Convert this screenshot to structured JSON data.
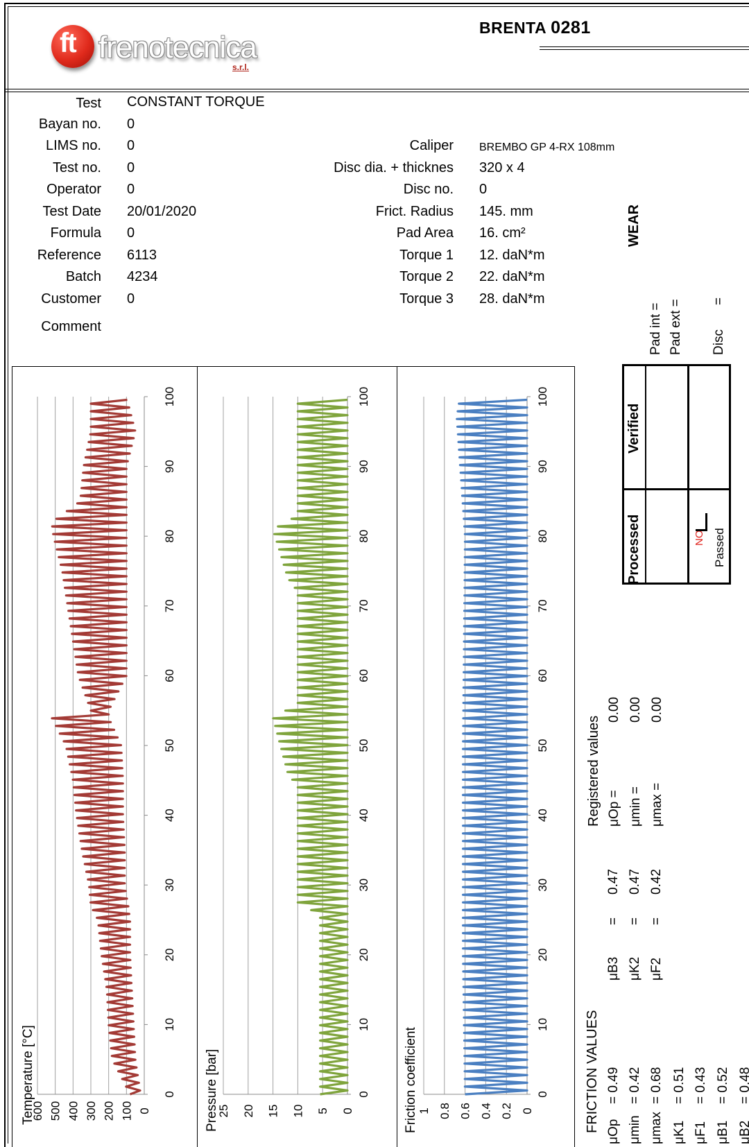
{
  "header": {
    "brand": "frenotecnica",
    "brand_suffix": "s.r.l.",
    "logo_mark": "ft",
    "machine": "BRENTA",
    "machine_number": "0281"
  },
  "test_info": {
    "test_label": "Test",
    "test_value": "CONSTANT TORQUE",
    "bayan_label": "Bayan no.",
    "bayan_value": "0",
    "lims_label": "LIMS no.",
    "lims_value": "0",
    "testno_label": "Test no.",
    "testno_value": "0",
    "operator_label": "Operator",
    "operator_value": "0",
    "date_label": "Test Date",
    "date_value": "20/01/2020",
    "formula_label": "Formula",
    "formula_value": "0",
    "reference_label": "Reference",
    "reference_value": "6113",
    "batch_label": "Batch",
    "batch_value": "4234",
    "customer_label": "Customer",
    "customer_value": "0",
    "comment_label": "Comment"
  },
  "setup": {
    "caliper_label": "Caliper",
    "caliper_value": "BREMBO GP 4-RX 108mm",
    "disc_dia_label": "Disc dia. + thicknes",
    "disc_dia_value": "320 x 4",
    "disc_no_label": "Disc no.",
    "disc_no_value": "0",
    "radius_label": "Frict. Radius",
    "radius_value": "145. mm",
    "pad_area_label": "Pad Area",
    "pad_area_value": "16. cm²",
    "torque1_label": "Torque 1",
    "torque1_value": "12. daN*m",
    "torque2_label": "Torque 2",
    "torque2_value": "22. daN*m",
    "torque3_label": "Torque 3",
    "torque3_value": "28. daN*m"
  },
  "wear": {
    "title": "WEAR",
    "pad_int": "Pad int =",
    "pad_ext": "Pad ext =",
    "disc": "Disc",
    "disc_eq": "="
  },
  "approval": {
    "verified": "Verified",
    "processed": "Processed",
    "no": "NO",
    "passed": "Passed"
  },
  "registered": {
    "title": "Registered values",
    "rows": [
      {
        "label": "μOp  =",
        "value": "0.00"
      },
      {
        "label": "μmin  =",
        "value": "0.00"
      },
      {
        "label": "μmax =",
        "value": "0.00"
      }
    ]
  },
  "friction_values": {
    "title": "FRICTION VALUES",
    "col1": [
      {
        "label": "μOp",
        "eq": "= 0.49"
      },
      {
        "label": "μmin",
        "eq": "= 0.42"
      },
      {
        "label": "μmax",
        "eq": "= 0.68"
      },
      {
        "label": "μK1",
        "eq": "=   0.51"
      },
      {
        "label": "μF1",
        "eq": "=   0.43"
      },
      {
        "label": "μB1",
        "eq": "=   0.52"
      },
      {
        "label": "μB2",
        "eq": "=   0.48"
      }
    ],
    "col2": [
      {
        "label": "μB3",
        "eq": "=",
        "value": "0.47"
      },
      {
        "label": "μK2",
        "eq": "=",
        "value": "0.47"
      },
      {
        "label": "μF2",
        "eq": "=",
        "value": "0.42"
      }
    ]
  },
  "colors": {
    "temperature": "#a33a35",
    "pressure": "#7fa43c",
    "friction": "#4a7fc1",
    "grid": "#a0a0a0",
    "no_text": "#e0201a"
  },
  "chart_data": [
    {
      "type": "line",
      "ylabel": "Temperature [°C]",
      "xticks": [
        "0",
        "10",
        "20",
        "30",
        "40",
        "50",
        "60",
        "70",
        "80",
        "90",
        "100"
      ],
      "yticks": [
        "600",
        "500",
        "400",
        "300",
        "200",
        "100",
        "0"
      ],
      "xlim": [
        0,
        100
      ],
      "ylim": [
        0,
        600
      ],
      "grid": true,
      "series": [
        {
          "envelope": [
            {
              "x": 0,
              "low": 20,
              "high": 80
            },
            {
              "x": 5,
              "low": 50,
              "high": 180
            },
            {
              "x": 10,
              "low": 60,
              "high": 200
            },
            {
              "x": 15,
              "low": 70,
              "high": 210
            },
            {
              "x": 20,
              "low": 80,
              "high": 240
            },
            {
              "x": 25,
              "low": 80,
              "high": 260
            },
            {
              "x": 27,
              "low": 90,
              "high": 300
            },
            {
              "x": 30,
              "low": 110,
              "high": 310
            },
            {
              "x": 35,
              "low": 110,
              "high": 350
            },
            {
              "x": 40,
              "low": 120,
              "high": 380
            },
            {
              "x": 45,
              "low": 120,
              "high": 400
            },
            {
              "x": 50,
              "low": 130,
              "high": 440
            },
            {
              "x": 54,
              "low": 200,
              "high": 520
            },
            {
              "x": 55,
              "low": 200,
              "high": 300
            },
            {
              "x": 60,
              "low": 100,
              "high": 370
            },
            {
              "x": 65,
              "low": 100,
              "high": 400
            },
            {
              "x": 70,
              "low": 100,
              "high": 430
            },
            {
              "x": 75,
              "low": 100,
              "high": 460
            },
            {
              "x": 80,
              "low": 100,
              "high": 510
            },
            {
              "x": 82,
              "low": 100,
              "high": 520
            },
            {
              "x": 85,
              "low": 100,
              "high": 360
            },
            {
              "x": 90,
              "low": 100,
              "high": 340
            },
            {
              "x": 95,
              "low": 50,
              "high": 300
            },
            {
              "x": 100,
              "low": 100,
              "high": 300
            }
          ]
        }
      ]
    },
    {
      "type": "line",
      "ylabel": "Pressure [bar]",
      "xticks": [
        "0",
        "10",
        "20",
        "30",
        "40",
        "50",
        "60",
        "70",
        "80",
        "90",
        "100"
      ],
      "yticks": [
        "25",
        "20",
        "15",
        "10",
        "5",
        "0"
      ],
      "xlim": [
        0,
        100
      ],
      "ylim": [
        0,
        25
      ],
      "grid": true,
      "series": [
        {
          "envelope": [
            {
              "x": 0,
              "low": 0,
              "high": 5.5
            },
            {
              "x": 26,
              "low": 0,
              "high": 5.5
            },
            {
              "x": 27,
              "low": 0,
              "high": 10
            },
            {
              "x": 44,
              "low": 0,
              "high": 10
            },
            {
              "x": 46,
              "low": 0,
              "high": 12
            },
            {
              "x": 54,
              "low": 0,
              "high": 15
            },
            {
              "x": 56,
              "low": 0,
              "high": 10
            },
            {
              "x": 72,
              "low": 0,
              "high": 10
            },
            {
              "x": 74,
              "low": 0,
              "high": 12
            },
            {
              "x": 81,
              "low": 0,
              "high": 15
            },
            {
              "x": 83,
              "low": 0,
              "high": 10
            },
            {
              "x": 100,
              "low": 0,
              "high": 10
            }
          ]
        }
      ]
    },
    {
      "type": "line",
      "ylabel": "Friction coefficient",
      "xticks": [
        "0",
        "10",
        "20",
        "30",
        "40",
        "50",
        "60",
        "70",
        "80",
        "90",
        "100"
      ],
      "yticks": [
        "1",
        "0.8",
        "0.6",
        "0.4",
        "0.2",
        "0"
      ],
      "xlim": [
        0,
        100
      ],
      "ylim": [
        0,
        1
      ],
      "grid": true,
      "series": [
        {
          "envelope": [
            {
              "x": 0,
              "low": 0.0,
              "high": 0.6
            },
            {
              "x": 20,
              "low": 0.0,
              "high": 0.62
            },
            {
              "x": 50,
              "low": 0.0,
              "high": 0.62
            },
            {
              "x": 80,
              "low": 0.0,
              "high": 0.6
            },
            {
              "x": 97,
              "low": 0.0,
              "high": 0.68
            },
            {
              "x": 100,
              "low": 0.0,
              "high": 0.65
            }
          ]
        }
      ]
    }
  ]
}
